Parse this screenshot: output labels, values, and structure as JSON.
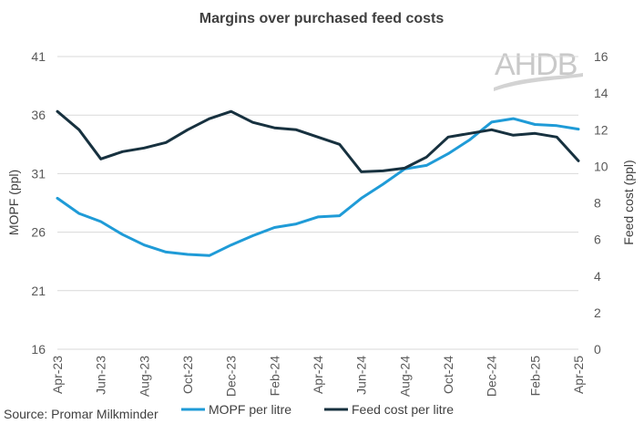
{
  "chart_data": {
    "type": "line",
    "title": "Margins over purchased feed costs",
    "xlabel": "",
    "ylabel": "MOPF (ppl)",
    "y2label": "Feed cost (ppl)",
    "ylim": [
      16,
      41
    ],
    "y2lim": [
      0,
      16
    ],
    "yticks": [
      "16",
      "21",
      "26",
      "31",
      "36",
      "41"
    ],
    "y2ticks": [
      "0",
      "2",
      "4",
      "6",
      "8",
      "10",
      "12",
      "14",
      "16"
    ],
    "xtick_labels": [
      "Apr-23",
      "Jun-23",
      "Aug-23",
      "Oct-23",
      "Dec-23",
      "Feb-24",
      "Apr-24",
      "Jun-24",
      "Aug-24",
      "Oct-24",
      "Dec-24",
      "Feb-25",
      "Apr-25"
    ],
    "x": [
      "Apr-23",
      "May-23",
      "Jun-23",
      "Jul-23",
      "Aug-23",
      "Sep-23",
      "Oct-23",
      "Nov-23",
      "Dec-23",
      "Jan-24",
      "Feb-24",
      "Mar-24",
      "Apr-24",
      "May-24",
      "Jun-24",
      "Jul-24",
      "Aug-24",
      "Sep-24",
      "Oct-24",
      "Nov-24",
      "Dec-24",
      "Jan-25",
      "Feb-25",
      "Mar-25",
      "Apr-25"
    ],
    "series": [
      {
        "name": "MOPF per litre",
        "axis": "left",
        "color": "#1f9bd7",
        "values": [
          28.9,
          27.6,
          26.9,
          25.8,
          24.9,
          24.3,
          24.1,
          24.0,
          24.9,
          25.7,
          26.4,
          26.7,
          27.3,
          27.4,
          28.9,
          30.1,
          31.4,
          31.7,
          32.7,
          33.9,
          35.4,
          35.7,
          35.2,
          35.1,
          34.8
        ],
        "values_note": "Apr-23 to Apr-25"
      },
      {
        "name": "Feed cost per litre",
        "axis": "right",
        "color": "#17313f",
        "values": [
          13.0,
          12.0,
          10.4,
          10.8,
          11.0,
          11.3,
          12.0,
          12.6,
          13.0,
          12.4,
          12.1,
          12.0,
          11.6,
          11.2,
          9.7,
          9.75,
          9.9,
          10.5,
          11.6,
          11.8,
          12.0,
          11.7,
          11.8,
          11.6,
          10.3
        ]
      }
    ],
    "legend": "bottom",
    "source": "Source: Promar Milkminder",
    "watermark": "AHDB"
  }
}
